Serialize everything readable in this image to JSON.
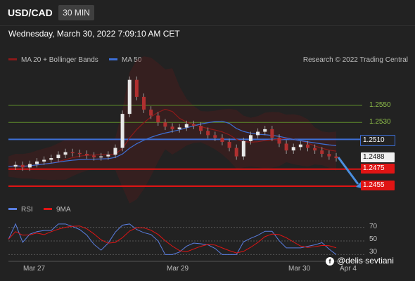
{
  "header": {
    "symbol": "USD/CAD",
    "timeframe": "30 MIN"
  },
  "datetime": "Wednesday, March 30, 2022 7:09:10 AM CET",
  "legend": {
    "bollinger": {
      "label": "MA 20 + Bollinger Bands",
      "color": "#8b1a1a"
    },
    "ma50": {
      "label": "MA 50",
      "color": "#3d6fd6"
    },
    "credit": "Research © 2022 Trading Central"
  },
  "levels": {
    "r2": "1.2550",
    "r1": "1.2530",
    "pivot": "1.2510",
    "last": "1.2488",
    "s1": "1.2475",
    "s2": "1.2455"
  },
  "colors": {
    "resistance": "#5c8a2a",
    "pivot": "#3d6fd6",
    "support": "#e01414",
    "up": "#e8e8e8",
    "down": "#b03030"
  },
  "rsi": {
    "legend": "RSI",
    "ma_legend": "9MA",
    "levels": [
      "70",
      "50",
      "30"
    ]
  },
  "xaxis": {
    "labels": [
      "Mar 27",
      "Mar 29",
      "Mar 30",
      "Apr 4"
    ]
  },
  "watermark": "@delis sevtiani",
  "chart_data": {
    "type": "line",
    "title": "USD/CAD",
    "timeframe": "30 MIN",
    "series": [
      {
        "name": "USD/CAD",
        "values": [
          1.2478,
          1.248,
          1.2477,
          1.2481,
          1.2484,
          1.2486,
          1.2488,
          1.2492,
          1.2495,
          1.2494,
          1.2493,
          1.2491,
          1.2489,
          1.249,
          1.2492,
          1.25,
          1.254,
          1.258,
          1.256,
          1.2545,
          1.2538,
          1.253,
          1.2525,
          1.2522,
          1.2524,
          1.2528,
          1.2526,
          1.252,
          1.2515,
          1.2512,
          1.2507,
          1.25,
          1.249,
          1.2508,
          1.2515,
          1.2519,
          1.2522,
          1.2512,
          1.2505,
          1.2497,
          1.2501,
          1.2504,
          1.25,
          1.2497,
          1.2493,
          1.249,
          1.2488
        ]
      }
    ],
    "levels": [
      1.255,
      1.253,
      1.251,
      1.2488,
      1.2475,
      1.2455
    ],
    "ylim": [
      1.2445,
      1.261
    ],
    "rsi_levels": [
      70,
      50,
      30
    ],
    "x_tick_labels": [
      "Mar 27",
      "Mar 29",
      "Mar 30",
      "Apr 4"
    ]
  }
}
